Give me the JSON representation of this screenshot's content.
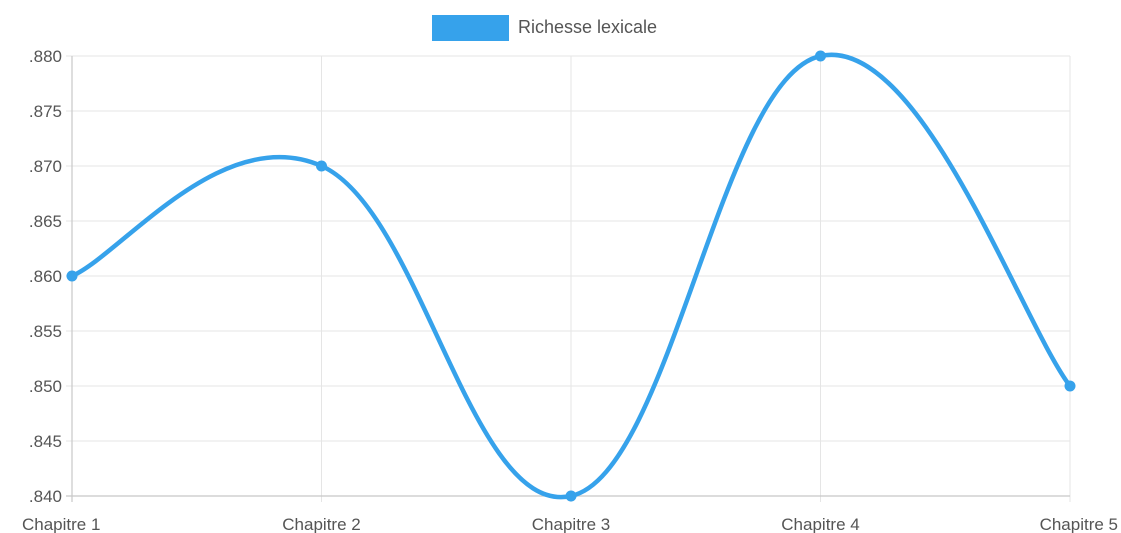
{
  "chart_data": {
    "type": "line",
    "categories": [
      "Chapitre 1",
      "Chapitre 2",
      "Chapitre 3",
      "Chapitre 4",
      "Chapitre 5"
    ],
    "series": [
      {
        "name": "Richesse lexicale",
        "values": [
          0.86,
          0.87,
          0.84,
          0.88,
          0.85
        ],
        "color": "#36a2eb"
      }
    ],
    "ylim": [
      0.84,
      0.88
    ],
    "yticks": [
      0.88,
      0.875,
      0.87,
      0.865,
      0.86,
      0.855,
      0.85,
      0.845,
      0.84
    ],
    "ytick_labels": [
      ".880",
      ".875",
      ".870",
      ".865",
      ".860",
      ".855",
      ".850",
      ".845",
      ".840"
    ],
    "grid": true,
    "legend_position": "top",
    "smooth": true
  }
}
